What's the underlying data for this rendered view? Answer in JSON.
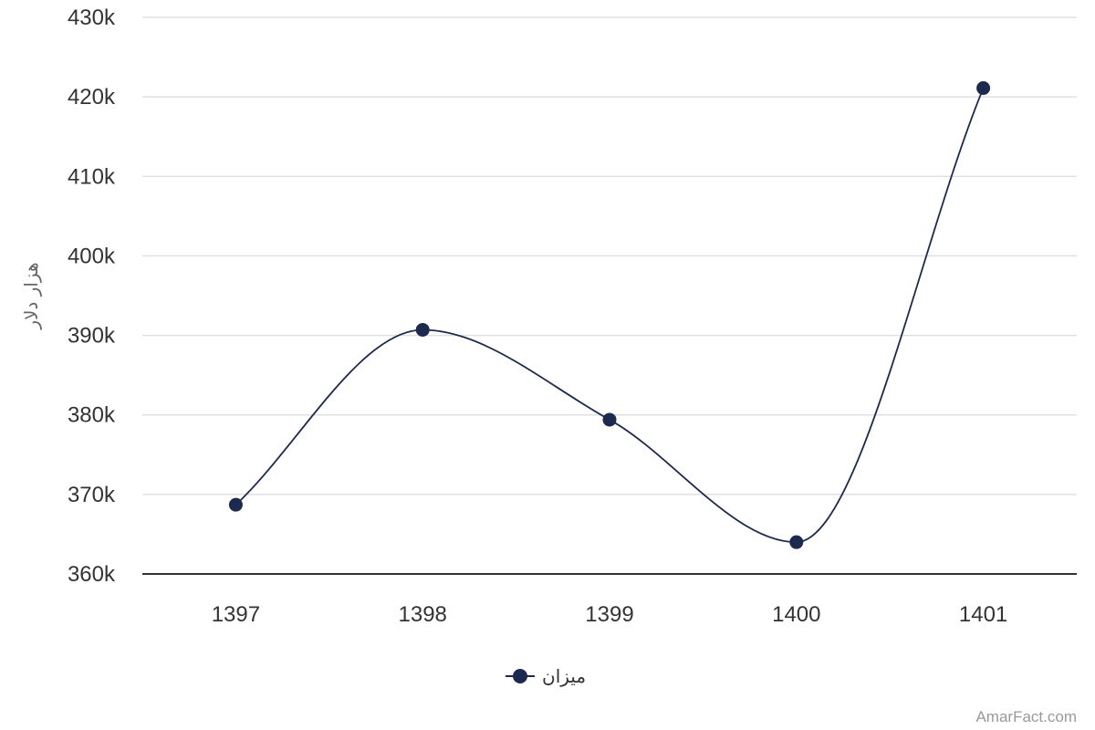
{
  "chart_data": {
    "type": "line",
    "smooth": true,
    "categories": [
      "1397",
      "1398",
      "1399",
      "1400",
      "1401"
    ],
    "series": [
      {
        "name": "میزان",
        "values": [
          368700,
          390700,
          379400,
          364000,
          421100
        ],
        "color": "#1b2a4e"
      }
    ],
    "ylim": [
      360000,
      430000
    ],
    "yticks": [
      360000,
      370000,
      380000,
      390000,
      400000,
      410000,
      420000,
      430000
    ],
    "ytick_labels": [
      "360k",
      "370k",
      "380k",
      "390k",
      "400k",
      "410k",
      "420k",
      "430k"
    ],
    "xlabel": "",
    "ylabel": "هزار دلار",
    "grid": true,
    "legend_position": "bottom-center",
    "credit": "AmarFact.com"
  }
}
